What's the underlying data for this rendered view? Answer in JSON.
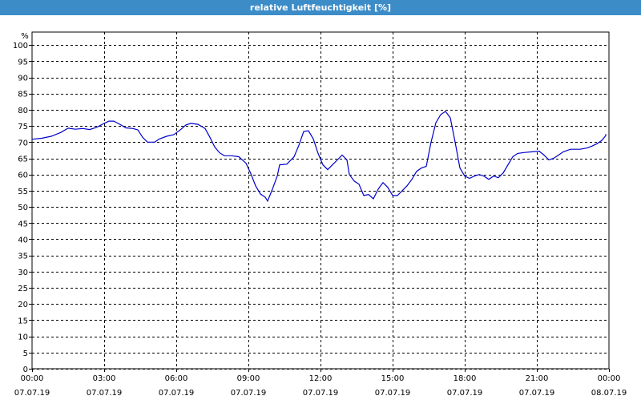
{
  "window": {
    "title": "relative Luftfeuchtigkeit [%]"
  },
  "colors": {
    "titlebar": "#3c8cc8",
    "line": "#0000cc",
    "grid": "#000000",
    "background": "#ffffff"
  },
  "chart_data": {
    "type": "line",
    "title": "relative Luftfeuchtigkeit [%]",
    "ylabel": "%",
    "xlabel": "",
    "ylim": [
      0,
      104
    ],
    "xlim": [
      0,
      24
    ],
    "grid": true,
    "legend": "none",
    "y_ticks": [
      0,
      5,
      10,
      15,
      20,
      25,
      30,
      35,
      40,
      45,
      50,
      55,
      60,
      65,
      70,
      75,
      80,
      85,
      90,
      95,
      100
    ],
    "x_ticks": [
      {
        "x": 0,
        "time": "00:00",
        "date": "07.07.19"
      },
      {
        "x": 3,
        "time": "03:00",
        "date": "07.07.19"
      },
      {
        "x": 6,
        "time": "06:00",
        "date": "07.07.19"
      },
      {
        "x": 9,
        "time": "09:00",
        "date": "07.07.19"
      },
      {
        "x": 12,
        "time": "12:00",
        "date": "07.07.19"
      },
      {
        "x": 15,
        "time": "15:00",
        "date": "07.07.19"
      },
      {
        "x": 18,
        "time": "18:00",
        "date": "07.07.19"
      },
      {
        "x": 21,
        "time": "21:00",
        "date": "07.07.19"
      },
      {
        "x": 24,
        "time": "00:00",
        "date": "08.07.19"
      }
    ],
    "series": [
      {
        "values": [
          [
            0.0,
            70.9
          ],
          [
            0.4,
            71.2
          ],
          [
            0.8,
            71.8
          ],
          [
            1.2,
            73.0
          ],
          [
            1.5,
            74.3
          ],
          [
            1.8,
            74.0
          ],
          [
            2.1,
            74.2
          ],
          [
            2.4,
            73.9
          ],
          [
            2.7,
            74.6
          ],
          [
            3.0,
            75.8
          ],
          [
            3.2,
            76.5
          ],
          [
            3.4,
            76.5
          ],
          [
            3.7,
            75.3
          ],
          [
            3.9,
            74.4
          ],
          [
            4.2,
            74.2
          ],
          [
            4.4,
            73.8
          ],
          [
            4.6,
            71.5
          ],
          [
            4.8,
            70.0
          ],
          [
            5.1,
            70.0
          ],
          [
            5.3,
            71.0
          ],
          [
            5.6,
            71.8
          ],
          [
            5.9,
            72.3
          ],
          [
            6.2,
            74.0
          ],
          [
            6.4,
            75.3
          ],
          [
            6.6,
            75.8
          ],
          [
            6.9,
            75.5
          ],
          [
            7.2,
            74.2
          ],
          [
            7.4,
            71.5
          ],
          [
            7.6,
            68.5
          ],
          [
            7.8,
            66.7
          ],
          [
            8.0,
            65.8
          ],
          [
            8.3,
            65.8
          ],
          [
            8.6,
            65.5
          ],
          [
            8.9,
            63.5
          ],
          [
            9.1,
            60.3
          ],
          [
            9.3,
            56.5
          ],
          [
            9.5,
            54.0
          ],
          [
            9.7,
            53.0
          ],
          [
            9.8,
            51.8
          ],
          [
            10.0,
            55.5
          ],
          [
            10.2,
            59.5
          ],
          [
            10.3,
            63.0
          ],
          [
            10.6,
            63.2
          ],
          [
            10.9,
            65.5
          ],
          [
            11.1,
            69.0
          ],
          [
            11.3,
            73.3
          ],
          [
            11.5,
            73.5
          ],
          [
            11.7,
            71.0
          ],
          [
            11.9,
            66.5
          ],
          [
            12.1,
            63.0
          ],
          [
            12.3,
            61.5
          ],
          [
            12.5,
            63.0
          ],
          [
            12.7,
            64.5
          ],
          [
            12.9,
            66.0
          ],
          [
            13.1,
            64.5
          ],
          [
            13.2,
            60.0
          ],
          [
            13.4,
            58.0
          ],
          [
            13.6,
            57.0
          ],
          [
            13.8,
            53.5
          ],
          [
            14.0,
            53.8
          ],
          [
            14.2,
            52.5
          ],
          [
            14.4,
            55.5
          ],
          [
            14.6,
            57.5
          ],
          [
            14.8,
            56.0
          ],
          [
            15.0,
            53.5
          ],
          [
            15.2,
            53.5
          ],
          [
            15.4,
            55.0
          ],
          [
            15.6,
            56.5
          ],
          [
            15.8,
            58.5
          ],
          [
            16.0,
            61.0
          ],
          [
            16.2,
            62.0
          ],
          [
            16.4,
            62.5
          ],
          [
            16.6,
            70.0
          ],
          [
            16.8,
            76.0
          ],
          [
            17.0,
            78.5
          ],
          [
            17.2,
            79.5
          ],
          [
            17.4,
            77.5
          ],
          [
            17.6,
            70.0
          ],
          [
            17.8,
            62.0
          ],
          [
            18.0,
            59.5
          ],
          [
            18.2,
            58.8
          ],
          [
            18.4,
            59.5
          ],
          [
            18.6,
            60.0
          ],
          [
            18.8,
            59.5
          ],
          [
            19.0,
            58.5
          ],
          [
            19.2,
            59.5
          ],
          [
            19.4,
            59.0
          ],
          [
            19.6,
            60.5
          ],
          [
            19.8,
            63.0
          ],
          [
            20.0,
            65.5
          ],
          [
            20.2,
            66.5
          ],
          [
            20.5,
            66.8
          ],
          [
            20.8,
            67.0
          ],
          [
            21.1,
            67.2
          ],
          [
            21.3,
            66.0
          ],
          [
            21.5,
            64.5
          ],
          [
            21.7,
            65.0
          ],
          [
            21.9,
            66.0
          ],
          [
            22.1,
            67.0
          ],
          [
            22.4,
            67.8
          ],
          [
            22.8,
            67.8
          ],
          [
            23.1,
            68.2
          ],
          [
            23.3,
            68.8
          ],
          [
            23.5,
            69.5
          ],
          [
            23.7,
            70.5
          ],
          [
            23.9,
            72.0
          ],
          [
            24.1,
            72.3
          ],
          [
            24.3,
            72.5
          ]
        ]
      }
    ]
  }
}
